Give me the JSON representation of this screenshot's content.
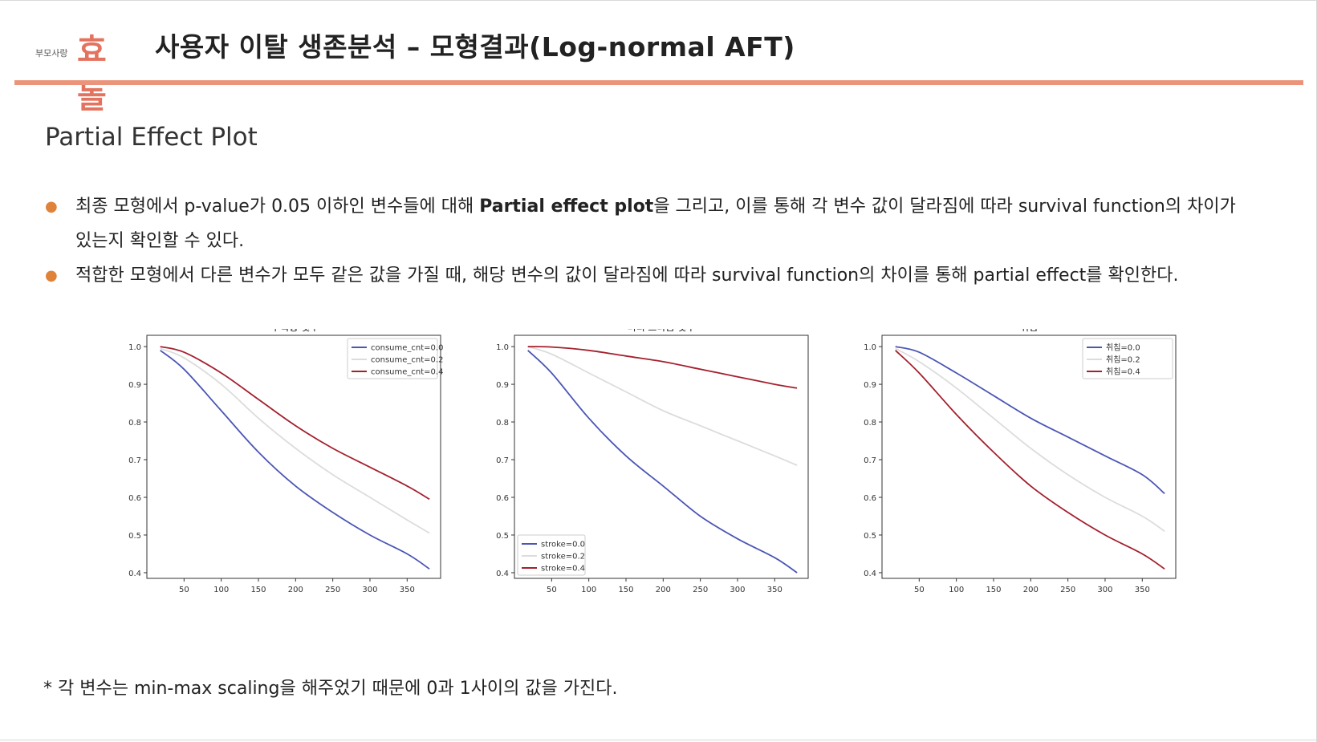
{
  "header": {
    "logo_small": "부모사랑",
    "logo_big": "효돌",
    "title": "사용자 이탈 생존분석 – 모형결과(Log-normal AFT)"
  },
  "section_title": "Partial Effect Plot",
  "bullets": [
    {
      "line1_pre": "최종 모형에서 p-value가 0.05 이하인 변수들에 대해 ",
      "line1_bold": "Partial effect plot",
      "line1_post": "을 그리고, 이를 통해 각 변수 값이 달라짐에 따라 survival function의 차이가",
      "line2": "있는지 확인할 수 있다."
    },
    {
      "line1": "적합한 모형에서  다른 변수가 모두 같은 값을 가질 때, 해당 변수의 값이 달라짐에 따라 survival function의 차이를 통해 partial effect를 확인한다."
    }
  ],
  "footnote": "* 각 변수는 min-max scaling을 해주었기 때문에 0과 1사이의 값을 가진다.",
  "colors": {
    "accent": "#ec947b",
    "logo": "#e3735e",
    "bullet": "#e0833a",
    "series_low": "#4b56b5",
    "series_mid": "#dcdcdc",
    "series_high": "#a3202e"
  },
  "chart_data": [
    {
      "type": "line",
      "title": "약 복용 횟수",
      "xlim": [
        0,
        395
      ],
      "ylim": [
        0.385,
        1.03
      ],
      "xticks": [
        50,
        100,
        150,
        200,
        250,
        300,
        350
      ],
      "yticks": [
        0.4,
        0.5,
        0.6,
        0.7,
        0.8,
        0.9,
        1.0
      ],
      "xtick_labels": [
        "50",
        "100",
        "150",
        "200",
        "250",
        "300",
        "350"
      ],
      "ytick_labels": [
        "0.4",
        "0.5",
        "0.6",
        "0.7",
        "0.8",
        "0.9",
        "1.0"
      ],
      "legend": "top-right",
      "series": [
        {
          "name": "consume_cnt=0.0",
          "color": "#4b56b5",
          "x": [
            18,
            50,
            100,
            150,
            200,
            250,
            300,
            350,
            380
          ],
          "y": [
            0.99,
            0.94,
            0.83,
            0.72,
            0.63,
            0.56,
            0.5,
            0.45,
            0.41
          ]
        },
        {
          "name": "consume_cnt=0.2",
          "color": "#dcdcdc",
          "x": [
            18,
            50,
            100,
            150,
            200,
            250,
            300,
            350,
            380
          ],
          "y": [
            0.995,
            0.97,
            0.9,
            0.81,
            0.73,
            0.66,
            0.6,
            0.54,
            0.505
          ]
        },
        {
          "name": "consume_cnt=0.4",
          "color": "#a3202e",
          "x": [
            18,
            50,
            100,
            150,
            200,
            250,
            300,
            350,
            380
          ],
          "y": [
            1.0,
            0.985,
            0.93,
            0.86,
            0.79,
            0.73,
            0.68,
            0.63,
            0.595
          ]
        }
      ]
    },
    {
      "type": "line",
      "title": "머리 쓰다듬 횟수",
      "xlim": [
        0,
        395
      ],
      "ylim": [
        0.385,
        1.03
      ],
      "xticks": [
        50,
        100,
        150,
        200,
        250,
        300,
        350
      ],
      "yticks": [
        0.4,
        0.5,
        0.6,
        0.7,
        0.8,
        0.9,
        1.0
      ],
      "xtick_labels": [
        "50",
        "100",
        "150",
        "200",
        "250",
        "300",
        "350"
      ],
      "ytick_labels": [
        "0.4",
        "0.5",
        "0.6",
        "0.7",
        "0.8",
        "0.9",
        "1.0"
      ],
      "legend": "bottom-left",
      "series": [
        {
          "name": "stroke=0.0",
          "color": "#4b56b5",
          "x": [
            18,
            50,
            100,
            150,
            200,
            250,
            300,
            350,
            380
          ],
          "y": [
            0.99,
            0.93,
            0.81,
            0.71,
            0.63,
            0.55,
            0.49,
            0.44,
            0.4
          ]
        },
        {
          "name": "stroke=0.2",
          "color": "#dcdcdc",
          "x": [
            18,
            50,
            100,
            150,
            200,
            250,
            300,
            350,
            380
          ],
          "y": [
            1.0,
            0.98,
            0.93,
            0.88,
            0.83,
            0.79,
            0.75,
            0.71,
            0.685
          ]
        },
        {
          "name": "stroke=0.4",
          "color": "#a3202e",
          "x": [
            18,
            50,
            100,
            150,
            200,
            250,
            300,
            350,
            380
          ],
          "y": [
            1.0,
            0.999,
            0.99,
            0.975,
            0.96,
            0.94,
            0.92,
            0.9,
            0.89
          ]
        }
      ]
    },
    {
      "type": "line",
      "title": "취침",
      "xlim": [
        0,
        395
      ],
      "ylim": [
        0.385,
        1.03
      ],
      "xticks": [
        50,
        100,
        150,
        200,
        250,
        300,
        350
      ],
      "yticks": [
        0.4,
        0.5,
        0.6,
        0.7,
        0.8,
        0.9,
        1.0
      ],
      "xtick_labels": [
        "50",
        "100",
        "150",
        "200",
        "250",
        "300",
        "350"
      ],
      "ytick_labels": [
        "0.4",
        "0.5",
        "0.6",
        "0.7",
        "0.8",
        "0.9",
        "1.0"
      ],
      "legend": "top-right",
      "series": [
        {
          "name": "취침=0.0",
          "color": "#4b56b5",
          "x": [
            18,
            50,
            100,
            150,
            200,
            250,
            300,
            350,
            380
          ],
          "y": [
            1.0,
            0.985,
            0.93,
            0.87,
            0.81,
            0.76,
            0.71,
            0.66,
            0.61
          ]
        },
        {
          "name": "취침=0.2",
          "color": "#dcdcdc",
          "x": [
            18,
            50,
            100,
            150,
            200,
            250,
            300,
            350,
            380
          ],
          "y": [
            0.995,
            0.96,
            0.89,
            0.81,
            0.73,
            0.66,
            0.6,
            0.55,
            0.51
          ]
        },
        {
          "name": "취침=0.4",
          "color": "#a3202e",
          "x": [
            18,
            50,
            100,
            150,
            200,
            250,
            300,
            350,
            380
          ],
          "y": [
            0.99,
            0.93,
            0.82,
            0.72,
            0.63,
            0.56,
            0.5,
            0.45,
            0.41
          ]
        }
      ]
    }
  ]
}
